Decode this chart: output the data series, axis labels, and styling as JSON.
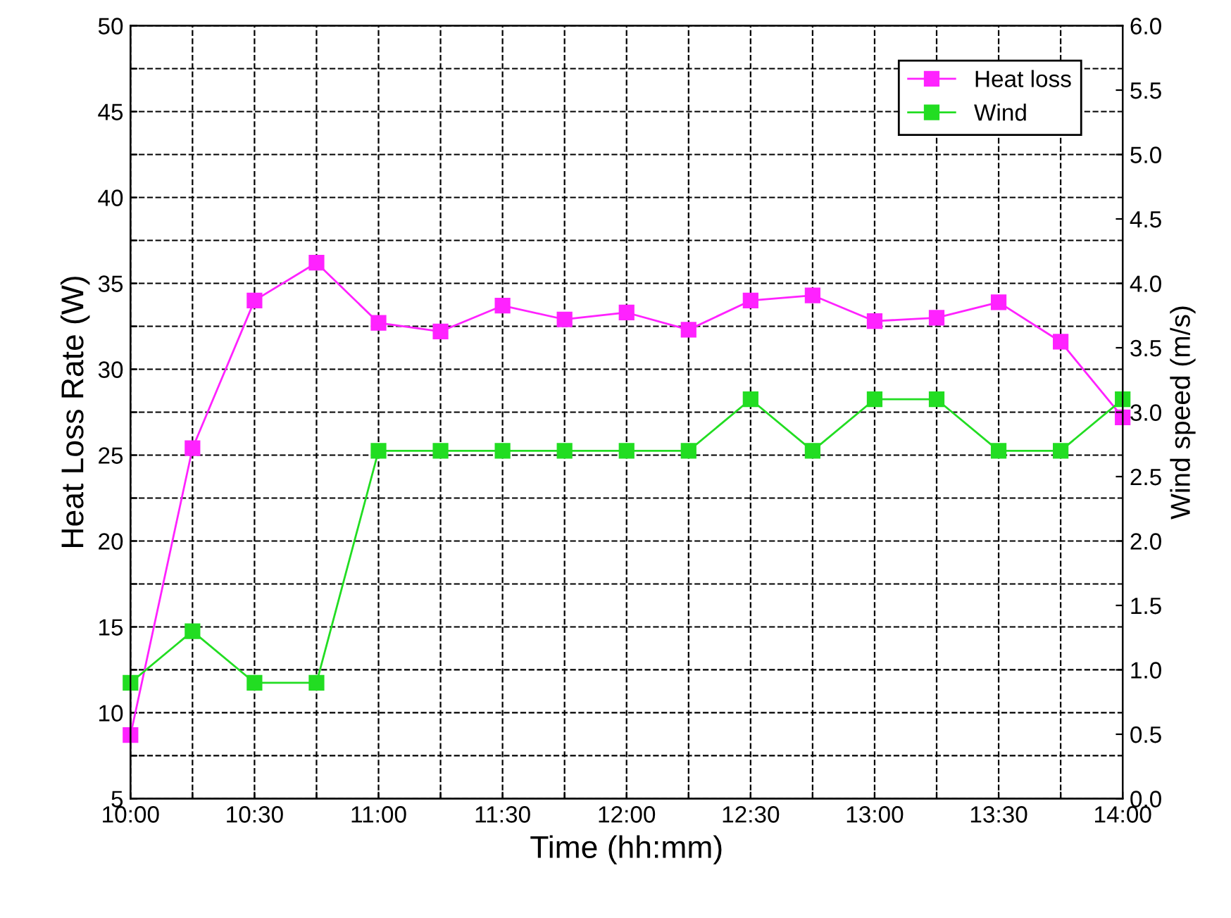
{
  "chart_data": {
    "type": "line",
    "xlabel": "Time (hh:mm)",
    "ylabel": "Heat Loss Rate (W)",
    "y2label": "Wind speed (m/s)",
    "x": [
      10,
      10.25,
      10.5,
      10.75,
      11,
      11.25,
      11.5,
      11.75,
      12,
      12.25,
      12.5,
      12.75,
      13,
      13.25,
      13.5,
      13.75,
      14
    ],
    "series": [
      {
        "name": "Heat loss",
        "color": "#ff22ff",
        "values": [
          8.7,
          25.4,
          34.0,
          36.2,
          32.7,
          32.2,
          33.7,
          32.9,
          33.3,
          32.3,
          34.0,
          34.3,
          32.8,
          33.0,
          33.9,
          31.6,
          27.2
        ]
      },
      {
        "name": "Wind",
        "color": "#22dd22",
        "axis": "y2",
        "values": [
          0.9,
          1.3,
          0.9,
          0.9,
          2.7,
          2.7,
          2.7,
          2.7,
          2.7,
          2.7,
          3.1,
          2.7,
          3.1,
          3.1,
          2.7,
          2.7,
          3.1
        ]
      }
    ],
    "xlim": [
      10,
      14
    ],
    "xticks": [
      {
        "value": 10,
        "label": "10:00"
      },
      {
        "value": 10.25,
        "label": null
      },
      {
        "value": 10.5,
        "label": "10:30"
      },
      {
        "value": 10.75,
        "label": null
      },
      {
        "value": 11,
        "label": "11:00"
      },
      {
        "value": 11.25,
        "label": null
      },
      {
        "value": 11.5,
        "label": "11:30"
      },
      {
        "value": 11.75,
        "label": null
      },
      {
        "value": 12,
        "label": "12:00"
      },
      {
        "value": 12.25,
        "label": null
      },
      {
        "value": 12.5,
        "label": "12:30"
      },
      {
        "value": 12.75,
        "label": null
      },
      {
        "value": 13,
        "label": "13:00"
      },
      {
        "value": 13.25,
        "label": null
      },
      {
        "value": 13.5,
        "label": "13:30"
      },
      {
        "value": 13.75,
        "label": null
      },
      {
        "value": 14,
        "label": "14:00"
      }
    ],
    "ylim": [
      5,
      50
    ],
    "yticks": [
      5,
      {
        "value": 7.5,
        "label": null
      },
      10,
      {
        "value": 12.5,
        "label": null
      },
      15,
      {
        "value": 17.5,
        "label": null
      },
      20,
      {
        "value": 22.5,
        "label": null
      },
      25,
      {
        "value": 27.5,
        "label": null
      },
      30,
      {
        "value": 32.5,
        "label": null
      },
      35,
      {
        "value": 37.5,
        "label": null
      },
      40,
      {
        "value": 42.5,
        "label": null
      },
      45,
      {
        "value": 47.5,
        "label": null
      },
      50
    ],
    "y2lim": [
      0,
      6
    ],
    "y2ticks": [
      {
        "value": 0,
        "label": "0.0"
      },
      {
        "value": 0.5,
        "label": "0.5"
      },
      {
        "value": 1,
        "label": "1.0"
      },
      {
        "value": 1.5,
        "label": "1.5"
      },
      {
        "value": 2,
        "label": "2.0"
      },
      {
        "value": 2.5,
        "label": "2.5"
      },
      {
        "value": 3,
        "label": "3.0"
      },
      {
        "value": 3.5,
        "label": "3.5"
      },
      {
        "value": 4,
        "label": "4.0"
      },
      {
        "value": 4.5,
        "label": "4.5"
      },
      {
        "value": 5,
        "label": "5.0"
      },
      {
        "value": 5.5,
        "label": "5.5"
      },
      {
        "value": 6,
        "label": "6.0"
      }
    ],
    "grid": true,
    "legend": "top right",
    "marker": "square",
    "line_style": "solid"
  }
}
